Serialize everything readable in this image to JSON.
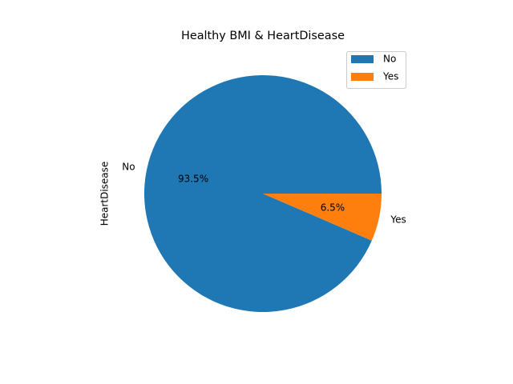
{
  "chart_data": {
    "type": "pie",
    "title": "Healthy BMI & HeartDisease",
    "ylabel": "HeartDisease",
    "categories": [
      "No",
      "Yes"
    ],
    "values": [
      93.5,
      6.5
    ],
    "value_labels": [
      "93.5%",
      "6.5%"
    ],
    "colors": [
      "#1f77b4",
      "#ff7f0e"
    ],
    "start_angle_deg": 0,
    "direction": "counterclockwise",
    "legend": {
      "placement": "top-right",
      "entries": [
        "No",
        "Yes"
      ]
    }
  }
}
